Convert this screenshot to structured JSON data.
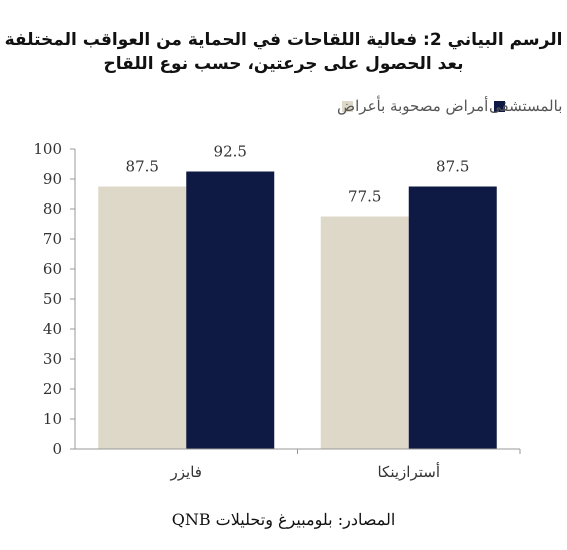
{
  "chart_data": {
    "type": "bar",
    "title_lines": [
      "الرسم البياني 2: فعالية اللقاحات في الحماية من العواقب المختلفة",
      "بعد الحصول على جرعتين، حسب نوع اللقاح"
    ],
    "categories": [
      "فايزر",
      "أسترازينكا"
    ],
    "series": [
      {
        "name": "أمراض مصحوبة بأعراض",
        "values": [
          87.5,
          77.5
        ],
        "color": "#ddd8c8"
      },
      {
        "name": "العلاج بالمستشفى",
        "values": [
          92.5,
          87.5
        ],
        "color": "#0f1a44"
      }
    ],
    "ylim": [
      0,
      100
    ],
    "yticks": [
      0,
      10,
      20,
      30,
      40,
      50,
      60,
      70,
      80,
      90,
      100
    ],
    "grid": false,
    "legend_position": "top",
    "data_labels": true,
    "source": "المصادر: بلومبيرغ وتحليلات QNB"
  }
}
